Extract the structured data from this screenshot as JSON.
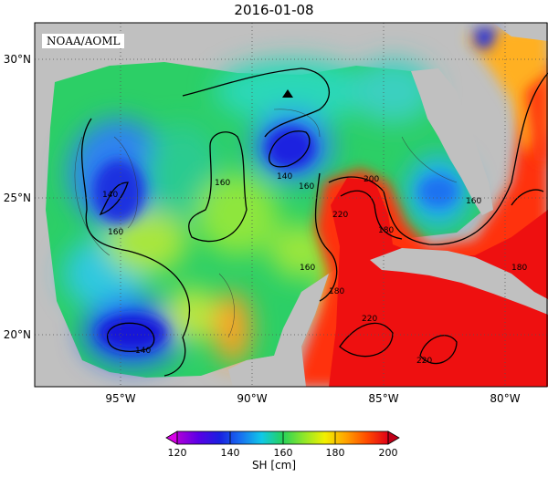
{
  "title": "2016-01-08",
  "credit": "NOAA/AOML",
  "colorbar": {
    "label": "SH [cm]",
    "ticks": [
      "120",
      "140",
      "160",
      "180",
      "200"
    ]
  },
  "map": {
    "lon_labels": [
      "95°W",
      "90°W",
      "85°W",
      "80°W"
    ],
    "lat_labels": [
      "30°N",
      "25°N",
      "20°N"
    ],
    "contour_labels": [
      "140",
      "140",
      "140",
      "160",
      "160",
      "160",
      "160",
      "180",
      "180",
      "180",
      "200",
      "220",
      "220",
      "220",
      "160"
    ]
  },
  "colors": {
    "land": "#c0c0c0",
    "low": "#1a1fe0",
    "mid": "#26d25a",
    "high": "#f01818"
  }
}
